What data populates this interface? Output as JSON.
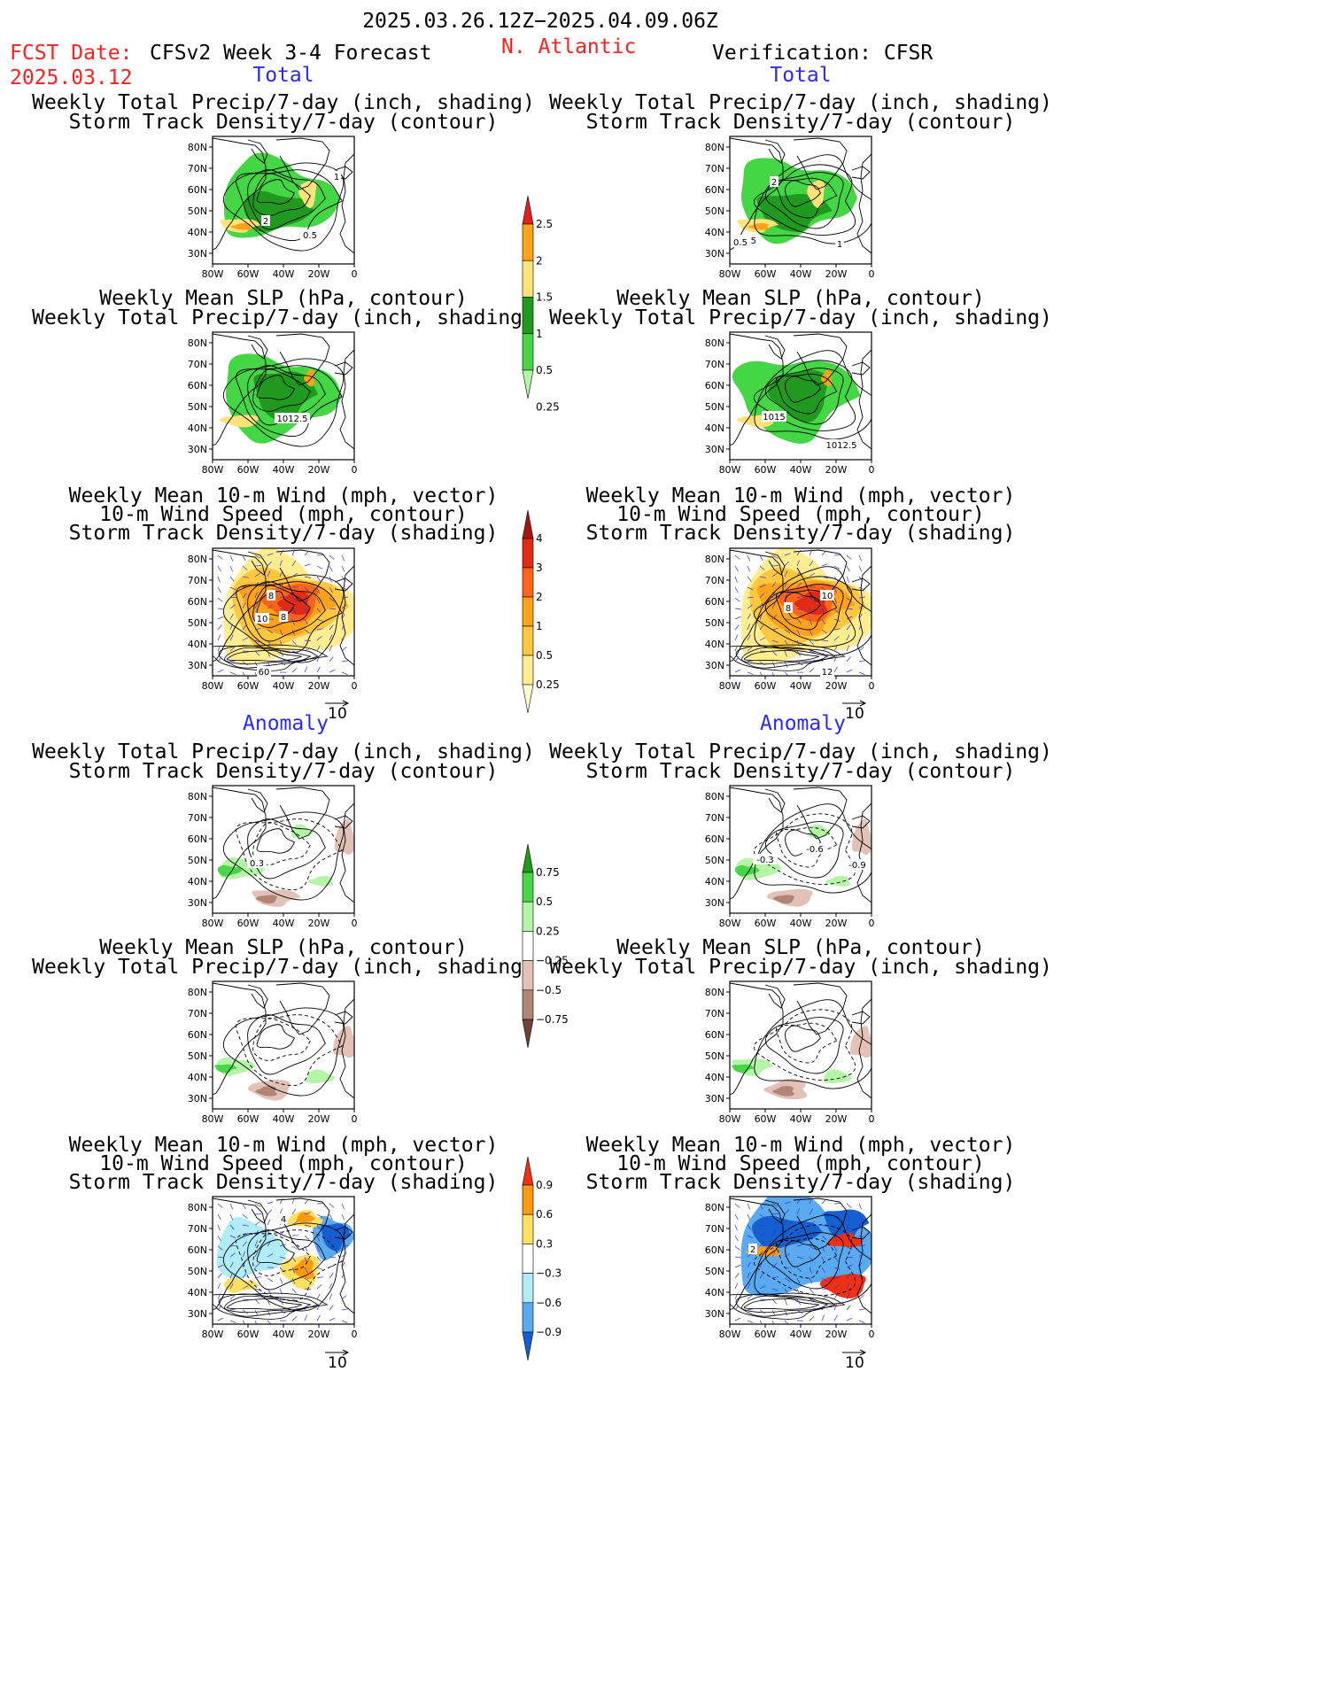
{
  "header": {
    "date_range": "2025.03.26.12Z−2025.04.09.06Z",
    "fcst_label": "FCST Date:",
    "fcst_date": "2025.03.12",
    "model": "CFSv2 Week 3-4 Forecast",
    "region": "N. Atlantic",
    "verification": "Verification: CFSR"
  },
  "sections": {
    "total": "Total",
    "anomaly": "Anomaly"
  },
  "titles": {
    "precip_track": [
      "Weekly Total Precip/7-day (inch, shading)",
      "Storm Track Density/7-day (contour)"
    ],
    "slp_precip": [
      "Weekly Mean SLP (hPa, contour)",
      "Weekly Total Precip/7-day (inch, shading)"
    ],
    "wind_track": [
      "Weekly Mean 10-m Wind (mph, vector)",
      "10-m Wind Speed (mph, contour)",
      "Storm Track Density/7-day (shading)"
    ]
  },
  "axes": {
    "lat_ticks": [
      "80N",
      "70N",
      "60N",
      "50N",
      "40N",
      "30N"
    ],
    "lon_ticks": [
      "80W",
      "60W",
      "40W",
      "20W",
      "0"
    ]
  },
  "vector_ref": "10",
  "contour_labels": {
    "f_precip": [
      "1",
      "2",
      "0.5"
    ],
    "v_precip": [
      "2",
      "0.5",
      "0.5",
      "1"
    ],
    "f_slp": [
      "1012.5"
    ],
    "v_slp": [
      "1015",
      "1012.5"
    ],
    "f_wind": [
      "8",
      "10",
      "8",
      "60"
    ],
    "v_wind": [
      "10",
      "8",
      "12"
    ],
    "f_anom_precip": [
      "0.3"
    ],
    "v_anom_precip": [
      "-0.3",
      "-0.6",
      "-0.9"
    ],
    "f_anom_wind": [
      "4"
    ],
    "v_anom_wind": [
      "2"
    ]
  },
  "colorbars": [
    {
      "name": "precip-total",
      "labels": [
        "2.5",
        "2",
        "1.5",
        "1",
        "0.5",
        "0.25"
      ],
      "colors": [
        "#e81e1e",
        "#ffa31a",
        "#ffe27a",
        "#1f9a1f",
        "#45d645",
        "#b4f5a8"
      ]
    },
    {
      "name": "track-total",
      "labels": [
        "4",
        "3",
        "2",
        "1",
        "0.5",
        "0.25"
      ],
      "colors": [
        "#a8140f",
        "#e12b16",
        "#ff6419",
        "#ffa21a",
        "#ffc740",
        "#ffed8f",
        "#fffcd2"
      ]
    },
    {
      "name": "precip-anom",
      "labels": [
        "0.75",
        "0.5",
        "0.25",
        "−0.25",
        "−0.5",
        "−0.75"
      ],
      "colors": [
        "#1e9a1e",
        "#48d648",
        "#b4f5a8",
        "#ffffff",
        "#e2c2b6",
        "#b08576",
        "#6e4236"
      ]
    },
    {
      "name": "track-anom",
      "labels": [
        "0.9",
        "0.6",
        "0.3",
        "−0.3",
        "−0.6",
        "−0.9"
      ],
      "colors": [
        "#f03010",
        "#ff9a10",
        "#ffe060",
        "#ffffff",
        "#b0ecf6",
        "#5aaaf0",
        "#1460d0"
      ]
    }
  ]
}
